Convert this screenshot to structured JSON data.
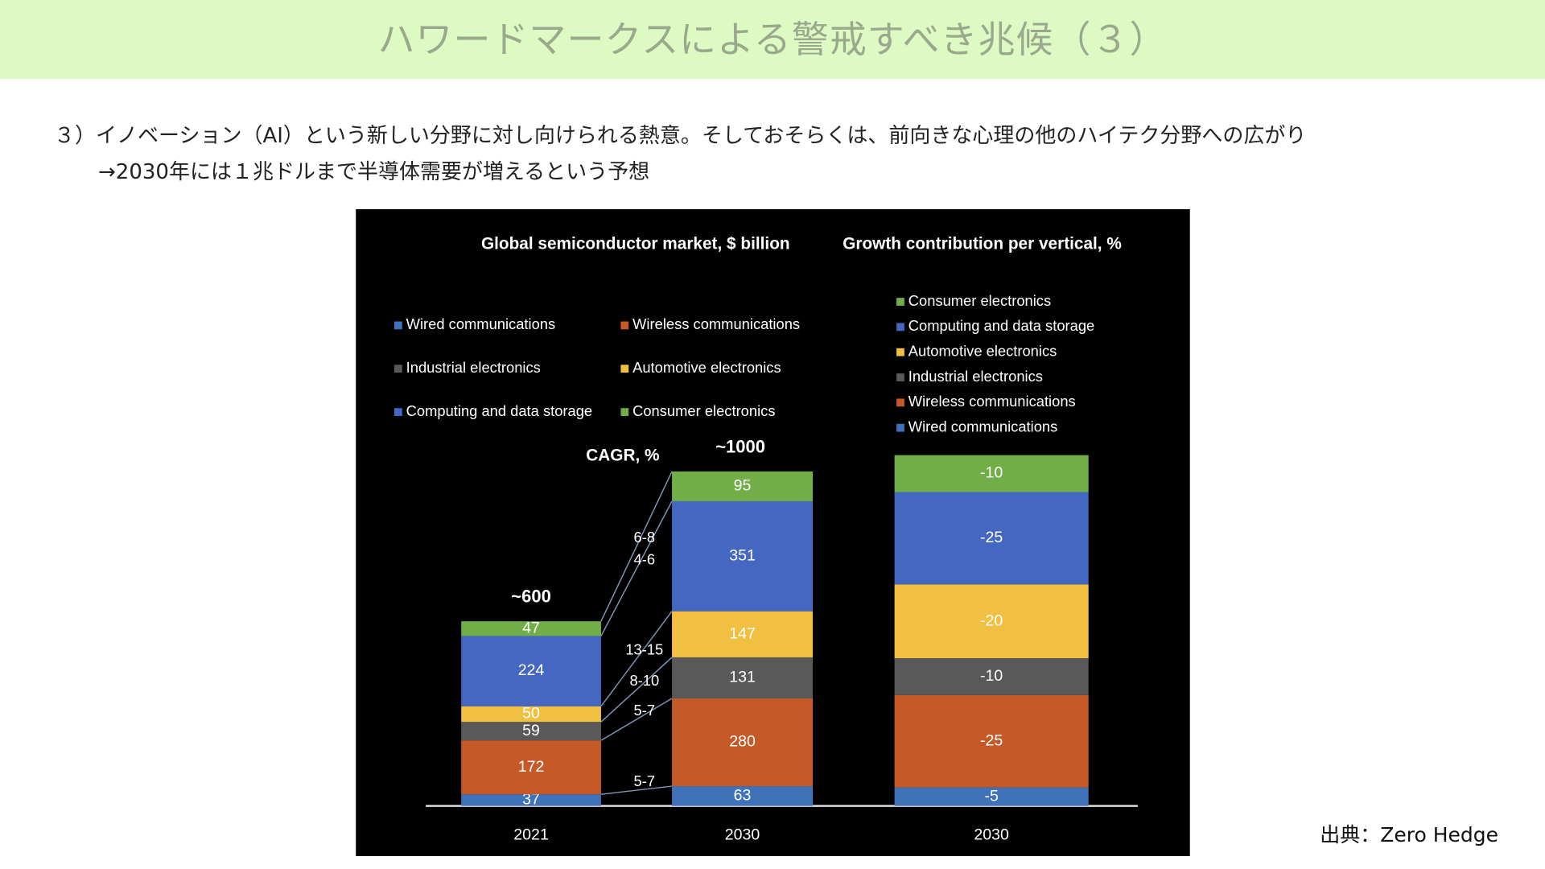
{
  "header": {
    "title": "ハワードマークスによる警戒すべき兆候（３）"
  },
  "body": {
    "lines": [
      "３）イノベーション（AI）という新しい分野に対し向けられる熱意。そしておそらくは、前向きな心理の他のハイテク分野への広がり",
      "→2030年には１兆ドルまで半導体需要が増えるという予想"
    ]
  },
  "source": "出典：Zero Hedge",
  "chart_data": [
    {
      "type": "stacked_bar",
      "title": "Global semiconductor market, $ billion",
      "categories": [
        "2021",
        "2030"
      ],
      "ylim": [
        0,
        1200
      ],
      "total_labels": [
        "~600",
        "~1000"
      ],
      "cagr_title": "CAGR, %",
      "series": [
        {
          "name": "Wired communications",
          "color": "#3f72b8",
          "values": [
            37,
            63
          ],
          "cagr": "5-7"
        },
        {
          "name": "Wireless communications",
          "color": "#c55a28",
          "values": [
            172,
            280
          ],
          "cagr": "5-7"
        },
        {
          "name": "Industrial electronics",
          "color": "#595959",
          "values": [
            59,
            131
          ],
          "cagr": "8-10"
        },
        {
          "name": "Automotive electronics",
          "color": "#f2c040",
          "values": [
            50,
            147
          ],
          "cagr": "13-15"
        },
        {
          "name": "Computing and data storage",
          "color": "#4467c2",
          "values": [
            224,
            351
          ],
          "cagr": "4-6"
        },
        {
          "name": "Consumer electronics",
          "color": "#72ae48",
          "values": [
            47,
            95
          ],
          "cagr": "6-8"
        }
      ]
    },
    {
      "type": "stacked_bar",
      "title": "Growth contribution per vertical, %",
      "categories": [
        "2030"
      ],
      "ylim": [
        0,
        -100
      ],
      "series": [
        {
          "name": "Wired communications",
          "color": "#3f72b8",
          "values": [
            -5
          ]
        },
        {
          "name": "Wireless communications",
          "color": "#c55a28",
          "values": [
            -25
          ]
        },
        {
          "name": "Industrial electronics",
          "color": "#595959",
          "values": [
            -10
          ]
        },
        {
          "name": "Automotive electronics",
          "color": "#f2c040",
          "values": [
            -20
          ]
        },
        {
          "name": "Computing and data storage",
          "color": "#4467c2",
          "values": [
            -25
          ]
        },
        {
          "name": "Consumer electronics",
          "color": "#72ae48",
          "values": [
            -10
          ]
        }
      ]
    }
  ]
}
